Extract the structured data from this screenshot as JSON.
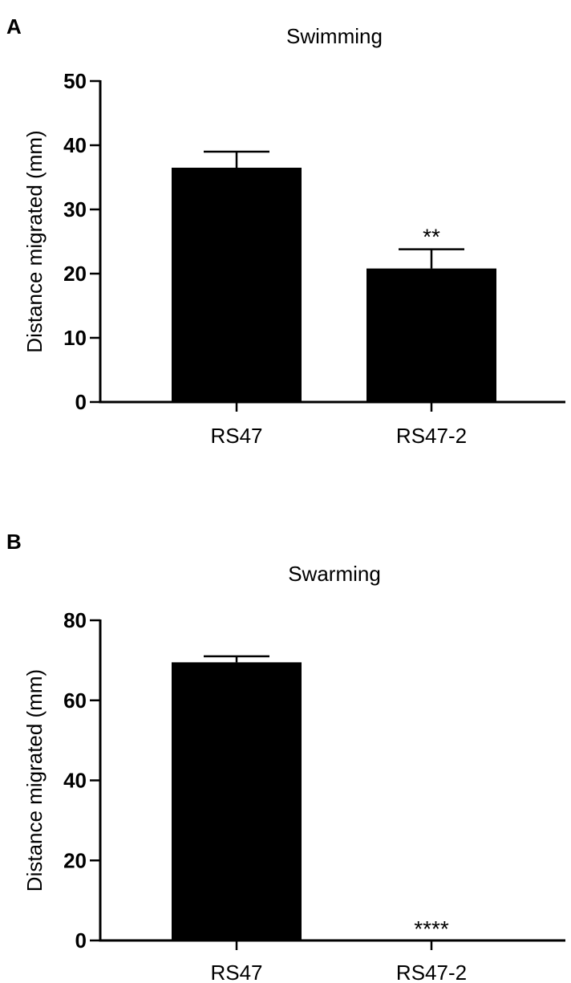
{
  "chart_data": [
    {
      "panel": "A",
      "type": "bar",
      "title": "Swimming",
      "ylabel": "Distance migrated (mm)",
      "xlabel": "",
      "categories": [
        "RS47",
        "RS47-2"
      ],
      "values": [
        36.5,
        20.8
      ],
      "error_upper": [
        39.0,
        23.8
      ],
      "significance": [
        "",
        "**"
      ],
      "ylim": [
        0,
        50
      ],
      "yticks": [
        0,
        10,
        20,
        30,
        40,
        50
      ],
      "bar_color": "#000000",
      "grid": false
    },
    {
      "panel": "B",
      "type": "bar",
      "title": "Swarming",
      "ylabel": "Distance migrated (mm)",
      "xlabel": "",
      "categories": [
        "RS47",
        "RS47-2"
      ],
      "values": [
        69.5,
        0
      ],
      "error_upper": [
        71.0,
        0
      ],
      "significance": [
        "",
        "****"
      ],
      "ylim": [
        0,
        80
      ],
      "yticks": [
        0,
        20,
        40,
        60,
        80
      ],
      "bar_color": "#000000",
      "grid": false
    }
  ]
}
